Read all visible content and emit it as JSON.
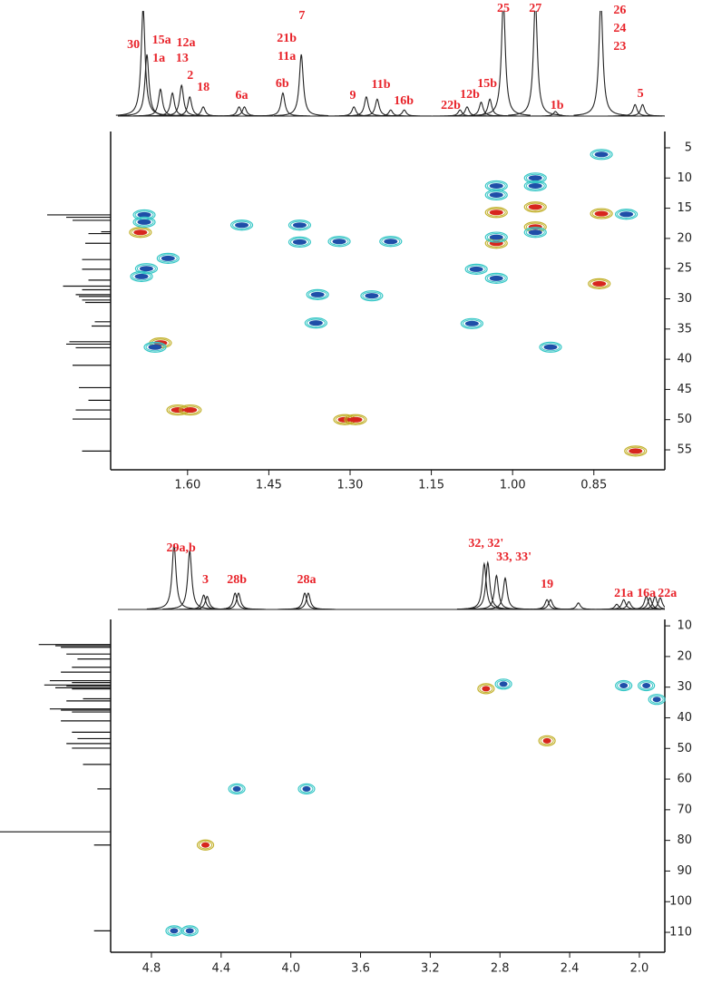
{
  "chart_data": [
    {
      "type": "hsqc",
      "xlim": [
        1.742,
        0.719
      ],
      "xticks": [
        {
          "value": 1.6,
          "label": "1.60"
        },
        1.45,
        {
          "value": 1.3,
          "label": "1.30"
        },
        1.15,
        {
          "value": 1.0,
          "label": "1.00"
        },
        0.85
      ],
      "ylim": [
        2.3,
        58.3
      ],
      "yticks": [
        5,
        10,
        15,
        20,
        25,
        30,
        35,
        40,
        45,
        50,
        55
      ],
      "peak_labels": [
        "30",
        "15a",
        "1a",
        "12a",
        "13",
        "2",
        "18",
        "6a",
        "6b",
        "21b",
        "11a",
        "7",
        "9",
        "11b",
        "16b",
        "22b",
        "12b",
        "15b",
        "25",
        "27",
        "1b",
        "26",
        "24",
        "23",
        "5"
      ],
      "peak_label_x": [
        1.7,
        1.648,
        1.653,
        1.603,
        1.61,
        1.595,
        1.571,
        1.5,
        1.425,
        1.417,
        1.417,
        1.389,
        1.295,
        1.243,
        1.201,
        1.114,
        1.079,
        1.047,
        1.017,
        0.958,
        0.918,
        0.802,
        0.802,
        0.802,
        0.764
      ],
      "proton": {
        "x": [
          1.682,
          1.675,
          1.65,
          1.628,
          1.611,
          1.596,
          1.571,
          1.505,
          1.495,
          1.424,
          1.39,
          1.293,
          1.27,
          1.25,
          1.225,
          1.2,
          1.097,
          1.084,
          1.058,
          1.042,
          1.017,
          0.958,
          0.921,
          0.837,
          0.774,
          0.76
        ],
        "intensity": [
          140,
          80,
          35,
          30,
          40,
          25,
          12,
          12,
          12,
          30,
          80,
          12,
          25,
          22,
          8,
          8,
          8,
          12,
          18,
          22,
          150,
          150,
          6,
          150,
          15,
          15
        ]
      },
      "carbon": {
        "y": [
          16.1,
          16.5,
          17.0,
          18.9,
          19.2,
          20.8,
          23.5,
          25.1,
          26.9,
          27.9,
          28.5,
          29.3,
          29.6,
          30.2,
          30.6,
          33.8,
          34.5,
          37.1,
          37.5,
          38.1,
          41.0,
          44.7,
          46.8,
          48.4,
          49.9,
          55.2
        ],
        "intensity": [
          100,
          70,
          60,
          15,
          35,
          40,
          45,
          45,
          35,
          75,
          45,
          55,
          50,
          45,
          40,
          25,
          30,
          65,
          70,
          55,
          60,
          50,
          35,
          55,
          60,
          45
        ]
      },
      "series": [
        {
          "color": "#d7261e",
          "ring_color": "#c2b02a",
          "x": [
            1.687,
            1.65,
            1.618,
            1.595,
            1.31,
            1.29,
            1.03,
            0.958,
            0.958,
            1.03,
            0.836,
            0.84,
            0.773
          ],
          "y": [
            19.0,
            37.3,
            48.4,
            48.4,
            50.0,
            50.0,
            15.7,
            14.8,
            18.1,
            20.8,
            15.9,
            27.5,
            55.2
          ]
        },
        {
          "color": "#1f4fa8",
          "ring_color": "#35c6c6",
          "x": [
            1.68,
            1.68,
            1.685,
            1.636,
            1.676,
            1.66,
            1.5,
            1.393,
            1.393,
            1.36,
            1.363,
            1.32,
            1.225,
            1.26,
            1.075,
            1.067,
            1.03,
            1.03,
            1.03,
            0.958,
            0.958,
            0.958,
            1.03,
            0.93,
            0.79,
            0.836
          ],
          "y": [
            16.1,
            17.3,
            26.3,
            23.3,
            25.0,
            38.0,
            17.8,
            17.8,
            20.6,
            29.3,
            34.0,
            20.5,
            20.5,
            29.5,
            34.1,
            25.1,
            26.6,
            11.3,
            12.8,
            10.0,
            11.3,
            19.0,
            19.8,
            38.0,
            16.0,
            6.1
          ]
        }
      ]
    },
    {
      "type": "hsqc",
      "xlim": [
        5.034,
        1.854
      ],
      "xticks": [
        4.8,
        4.4,
        {
          "value": 4.0,
          "label": "4.0"
        },
        3.6,
        3.2,
        2.8,
        2.4,
        {
          "value": 2.0,
          "label": "2.0"
        }
      ],
      "ylim": [
        7.9,
        116.5
      ],
      "yticks": [
        10,
        20,
        30,
        40,
        50,
        60,
        70,
        80,
        90,
        100,
        110
      ],
      "peak_labels": [
        "29a,b",
        "3",
        "28b",
        "28a",
        "32, 32'",
        "33, 33'",
        "19",
        "21a",
        "16a",
        "22a"
      ],
      "peak_label_x": [
        4.63,
        4.49,
        4.31,
        3.91,
        2.88,
        2.72,
        2.53,
        2.09,
        1.96,
        1.84
      ],
      "proton": {
        "x": [
          4.67,
          4.58,
          4.5,
          4.48,
          4.32,
          4.3,
          3.92,
          3.9,
          2.89,
          2.87,
          2.82,
          2.77,
          2.53,
          2.51,
          2.35,
          2.13,
          2.09,
          2.06,
          1.96,
          1.94,
          1.91,
          1.88
        ],
        "intensity": [
          100,
          90,
          22,
          20,
          25,
          25,
          25,
          25,
          70,
          72,
          52,
          48,
          15,
          15,
          10,
          8,
          15,
          12,
          20,
          18,
          20,
          18
        ]
      },
      "carbon": {
        "y": [
          16.1,
          16.5,
          17.0,
          19.2,
          20.8,
          23.5,
          25.1,
          27.9,
          28.5,
          29.3,
          29.6,
          30.2,
          30.6,
          33.8,
          34.5,
          37.1,
          37.5,
          38.1,
          41.0,
          44.7,
          46.8,
          48.4,
          49.9,
          55.2,
          63.2,
          77.2,
          81.5,
          109.5
        ],
        "intensity": [
          65,
          50,
          45,
          40,
          30,
          35,
          45,
          55,
          35,
          60,
          40,
          50,
          35,
          25,
          40,
          55,
          45,
          35,
          45,
          35,
          30,
          40,
          35,
          25,
          12,
          100,
          15,
          15
        ]
      },
      "series": [
        {
          "color": "#d7261e",
          "ring_color": "#c2b02a",
          "x": [
            2.88,
            2.53,
            4.49
          ],
          "y": [
            30.5,
            47.5,
            81.5
          ]
        },
        {
          "color": "#1f4fa8",
          "ring_color": "#35c6c6",
          "x": [
            2.78,
            2.09,
            1.96,
            1.9,
            4.31,
            3.91,
            4.67,
            4.58
          ],
          "y": [
            29.0,
            29.5,
            29.5,
            34.0,
            63.2,
            63.2,
            109.5,
            109.5
          ]
        }
      ]
    }
  ]
}
